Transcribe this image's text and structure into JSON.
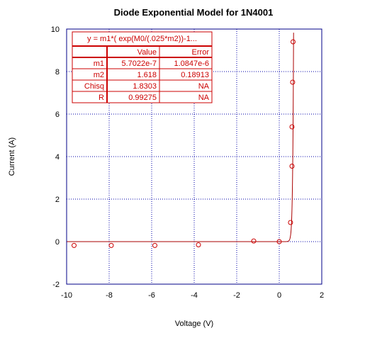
{
  "chart_data": {
    "type": "scatter",
    "title": "Diode Exponential Model for 1N4001",
    "xlabel": "Voltage (V)",
    "ylabel": "Current (A)",
    "xlim": [
      -10,
      2
    ],
    "ylim": [
      -2,
      10
    ],
    "x_ticks": [
      "-10",
      "-8",
      "-6",
      "-4",
      "-2",
      "0",
      "2"
    ],
    "y_ticks": [
      "-2",
      "0",
      "2",
      "4",
      "6",
      "8",
      "10"
    ],
    "grid": true,
    "colors": {
      "points": "#cc0000",
      "fit": "#aa0000",
      "frame": "#000088",
      "grid": "#0000aa"
    },
    "points": [
      {
        "x": -9.65,
        "y": -0.18
      },
      {
        "x": -7.9,
        "y": -0.18
      },
      {
        "x": -5.85,
        "y": -0.18
      },
      {
        "x": -3.8,
        "y": -0.15
      },
      {
        "x": -1.2,
        "y": 0.03
      },
      {
        "x": 0.0,
        "y": 0.0
      },
      {
        "x": 0.53,
        "y": 0.9
      },
      {
        "x": 0.6,
        "y": 3.55
      },
      {
        "x": 0.6,
        "y": 5.4
      },
      {
        "x": 0.63,
        "y": 7.5
      },
      {
        "x": 0.65,
        "y": 9.4
      }
    ],
    "fit": {
      "type": "exponential",
      "equation": "y = m1*( exp(M0/(.025*m2))-1...",
      "m1": 5.7022e-07,
      "m2": 1.618
    },
    "fit_table": {
      "equation": "y = m1*( exp(M0/(.025*m2))-1...",
      "header": [
        "",
        "Value",
        "Error"
      ],
      "rows": [
        [
          "m1",
          "5.7022e-7",
          "1.0847e-6"
        ],
        [
          "m2",
          "1.618",
          "0.18913"
        ],
        [
          "Chisq",
          "1.8303",
          "NA"
        ],
        [
          "R",
          "0.99275",
          "NA"
        ]
      ]
    }
  }
}
